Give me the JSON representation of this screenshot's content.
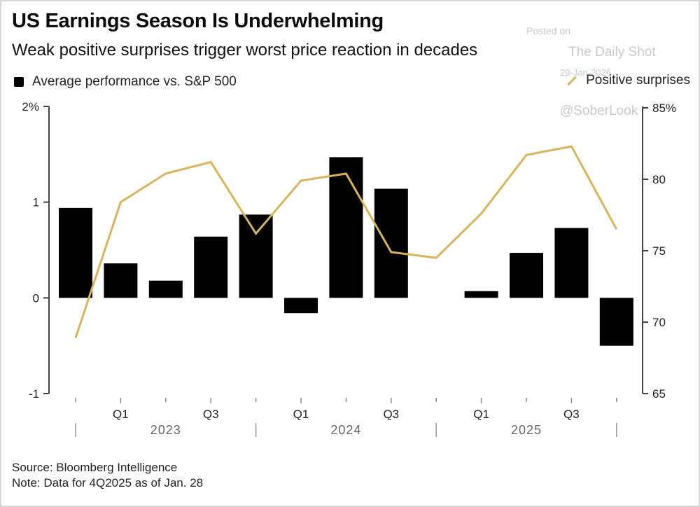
{
  "header": {
    "title": "US Earnings Season Is Underwhelming",
    "subtitle": "Weak positive surprises trigger worst price reaction in decades"
  },
  "watermark": {
    "line1": "Posted on",
    "line2": "The Daily Shot",
    "line3": "29-Jan-2026",
    "handle": "@SoberLook"
  },
  "footer": {
    "source": "Source: Bloomberg Intelligence",
    "note": "Note: Data for 4Q2025 as of Jan. 28"
  },
  "colors": {
    "bars": "#000000",
    "line": "#d8b45a",
    "axis": "#444444"
  },
  "chart_data": {
    "type": "bar+line",
    "title": "US Earnings Season Is Underwhelming",
    "subtitle": "Weak positive surprises trigger worst price reaction in decades",
    "categories": [
      "Q4 2022",
      "Q1 2023",
      "Q2 2023",
      "Q3 2023",
      "Q4 2023",
      "Q1 2024",
      "Q2 2024",
      "Q3 2024",
      "Q4 2024",
      "Q1 2025",
      "Q2 2025",
      "Q3 2025",
      "Q4 2025"
    ],
    "series": [
      {
        "name": "Average performance vs. S&P 500",
        "type": "bar",
        "axis": "left",
        "values": [
          0.94,
          0.36,
          0.18,
          0.64,
          0.87,
          -0.16,
          1.47,
          1.14,
          null,
          0.07,
          0.47,
          0.73,
          -0.5
        ]
      },
      {
        "name": "Positive surprises",
        "type": "line",
        "axis": "right",
        "values": [
          68.9,
          78.4,
          80.4,
          81.2,
          76.2,
          79.9,
          80.4,
          74.9,
          74.5,
          77.6,
          81.7,
          82.3,
          76.5
        ]
      }
    ],
    "left_axis": {
      "ylim": [
        -1,
        2
      ],
      "ticks": [
        2,
        1,
        0,
        -1
      ],
      "tick_labels": [
        "2%",
        "1",
        "0",
        "-1"
      ]
    },
    "right_axis": {
      "ylim": [
        65,
        85
      ],
      "ticks": [
        85,
        80,
        75,
        70,
        65
      ],
      "tick_labels": [
        "85%",
        "80",
        "75",
        "70",
        "65"
      ]
    },
    "x_quarter_labels": [
      {
        "index": 1,
        "label": "Q1"
      },
      {
        "index": 3,
        "label": "Q3"
      },
      {
        "index": 5,
        "label": "Q1"
      },
      {
        "index": 7,
        "label": "Q3"
      },
      {
        "index": 9,
        "label": "Q1"
      },
      {
        "index": 11,
        "label": "Q3"
      }
    ],
    "x_year_labels": [
      "2023",
      "2024",
      "2025"
    ],
    "legend": [
      {
        "label": "Average performance vs. S&P 500",
        "marker": "square",
        "position": "top-left"
      },
      {
        "label": "Positive surprises",
        "marker": "line",
        "position": "top-right"
      }
    ],
    "grid": false
  }
}
